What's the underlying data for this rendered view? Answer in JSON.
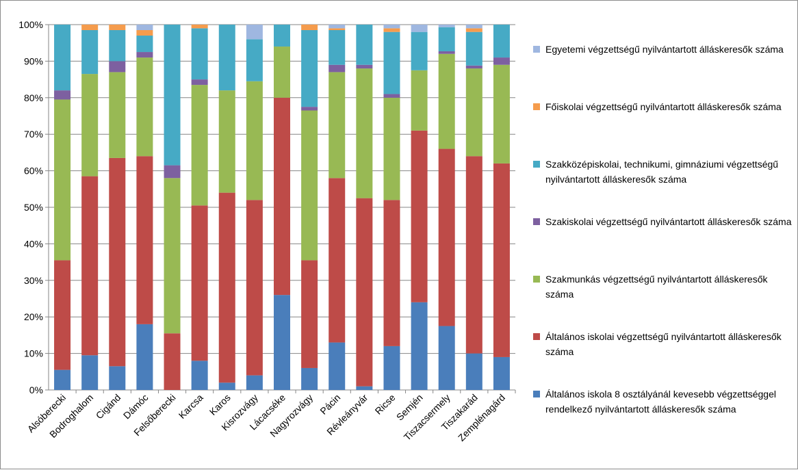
{
  "chart_data": {
    "type": "bar",
    "stacked": true,
    "percent": true,
    "categories": [
      "Alsóberecki",
      "Bodroghalom",
      "Cigánd",
      "Dámóc",
      "Felsőberecki",
      "Karcsa",
      "Karos",
      "Kisrozvágy",
      "Lácacséke",
      "Nagyrozvágy",
      "Pácin",
      "Révleányvár",
      "Ricse",
      "Semjén",
      "Tiszacsermely",
      "Tiszakarád",
      "Zemplénagárd"
    ],
    "y_ticks": [
      "0%",
      "10%",
      "20%",
      "30%",
      "40%",
      "50%",
      "60%",
      "70%",
      "80%",
      "90%",
      "100%"
    ],
    "ylim": [
      0,
      100
    ],
    "grid": true,
    "legend_position": "right",
    "series": [
      {
        "name": "Általános iskola 8 osztályánál kevesebb végzettséggel rendelkező nyilvántartott álláskeresők száma",
        "color": "#4a7ebb",
        "values": [
          5.5,
          9.5,
          6.5,
          18,
          0,
          8,
          2,
          4,
          26,
          6,
          13,
          1,
          12,
          24,
          17.5,
          10,
          9
        ]
      },
      {
        "name": "Általános iskolai végzettségű nyilvántartott álláskeresők száma",
        "color": "#be4b48",
        "values": [
          30,
          49,
          57,
          46,
          15.5,
          42.5,
          52,
          48,
          54,
          29.5,
          45,
          51.5,
          40,
          47,
          48.5,
          54,
          53
        ]
      },
      {
        "name": "Szakmunkás végzettségű nyilvántartott álláskeresők száma",
        "color": "#98b954",
        "values": [
          44,
          28,
          23.5,
          27,
          42.5,
          33,
          28,
          32.5,
          14,
          41,
          29,
          35.5,
          28,
          16.5,
          26,
          24,
          27
        ]
      },
      {
        "name": "Szakiskolai végzettségű nyilvántartott álláskeresők száma",
        "color": "#7d60a0",
        "values": [
          2.5,
          0,
          3,
          1.5,
          3.5,
          1.5,
          0,
          0,
          0,
          1,
          2,
          1,
          1,
          0,
          0.7,
          0.8,
          2
        ]
      },
      {
        "name": "Szakközépiskolai, technikumi, gimnáziumi végzettségű nyilvántartott álláskeresők száma",
        "color": "#46aac5",
        "values": [
          18,
          12,
          8.5,
          4.5,
          38.5,
          14,
          18,
          11.5,
          6,
          21,
          9.5,
          11,
          17,
          10.5,
          6.6,
          9.2,
          9
        ]
      },
      {
        "name": "Főiskolai végzettségű nyilvántartott álláskeresők száma",
        "color": "#f59c4d",
        "values": [
          0,
          1.5,
          1.5,
          1.5,
          0,
          1,
          0,
          0,
          0,
          1.5,
          0.5,
          0,
          1,
          0,
          0,
          1,
          0
        ]
      },
      {
        "name": "Egyetemi végzettségű nyilvántartott álláskeresők száma",
        "color": "#9fb7e0",
        "values": [
          0,
          0,
          0,
          1.5,
          0,
          0,
          0,
          4,
          0,
          0,
          1,
          0,
          1,
          2,
          0.7,
          1,
          0
        ]
      }
    ],
    "legend_order": [
      6,
      5,
      4,
      3,
      2,
      1,
      0
    ],
    "title": "",
    "xlabel": "",
    "ylabel": ""
  }
}
